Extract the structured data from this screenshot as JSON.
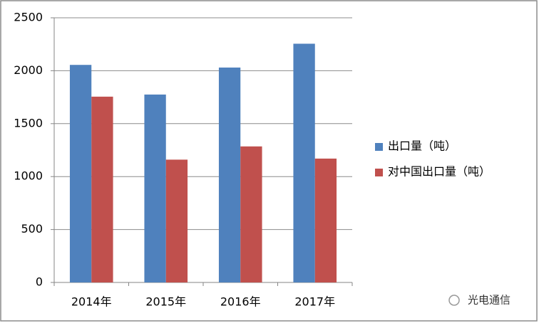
{
  "chart_data": {
    "type": "bar",
    "categories": [
      "2014年",
      "2015年",
      "2016年",
      "2017年"
    ],
    "series": [
      {
        "name": "出口量（吨）",
        "color": "#4f81bd",
        "values": [
          2055,
          1775,
          2030,
          2255
        ]
      },
      {
        "name": "对中国出口量（吨）",
        "color": "#c0504d",
        "values": [
          1755,
          1160,
          1285,
          1170
        ]
      }
    ],
    "ylim": [
      0,
      2500
    ],
    "yticks": [
      0,
      500,
      1000,
      1500,
      2000,
      2500
    ],
    "grid": true,
    "legend": "right"
  },
  "watermark": "光电通信"
}
